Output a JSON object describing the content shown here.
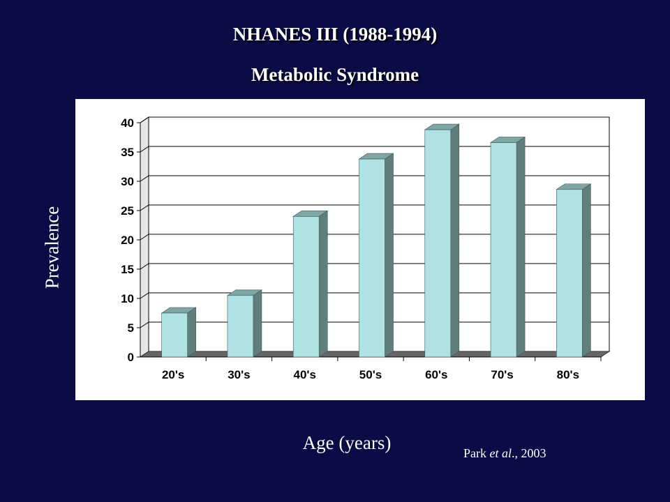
{
  "slide": {
    "title_line1": "NHANES III  (1988-1994)",
    "title_line2": "Metabolic Syndrome",
    "citation_author": "Park ",
    "citation_etal": "et al",
    "citation_rest": "., 2003",
    "background_color": "#0b0b45"
  },
  "chart_data": {
    "type": "bar",
    "title": "",
    "xlabel": "Age (years)",
    "ylabel": "Prevalence",
    "categories": [
      "20's",
      "30's",
      "40's",
      "50's",
      "60's",
      "70's",
      "80's"
    ],
    "values": [
      7.5,
      10.5,
      24,
      33.8,
      38.8,
      36.6,
      28.6
    ],
    "ylim": [
      0,
      40
    ],
    "yticks": [
      0,
      5,
      10,
      15,
      20,
      25,
      30,
      35,
      40
    ],
    "grid": true,
    "legend": "none",
    "bar_color": "#b0e2e4",
    "bar_side_color": "#5f7f7f",
    "bar_top_color": "#7fa5a5"
  }
}
